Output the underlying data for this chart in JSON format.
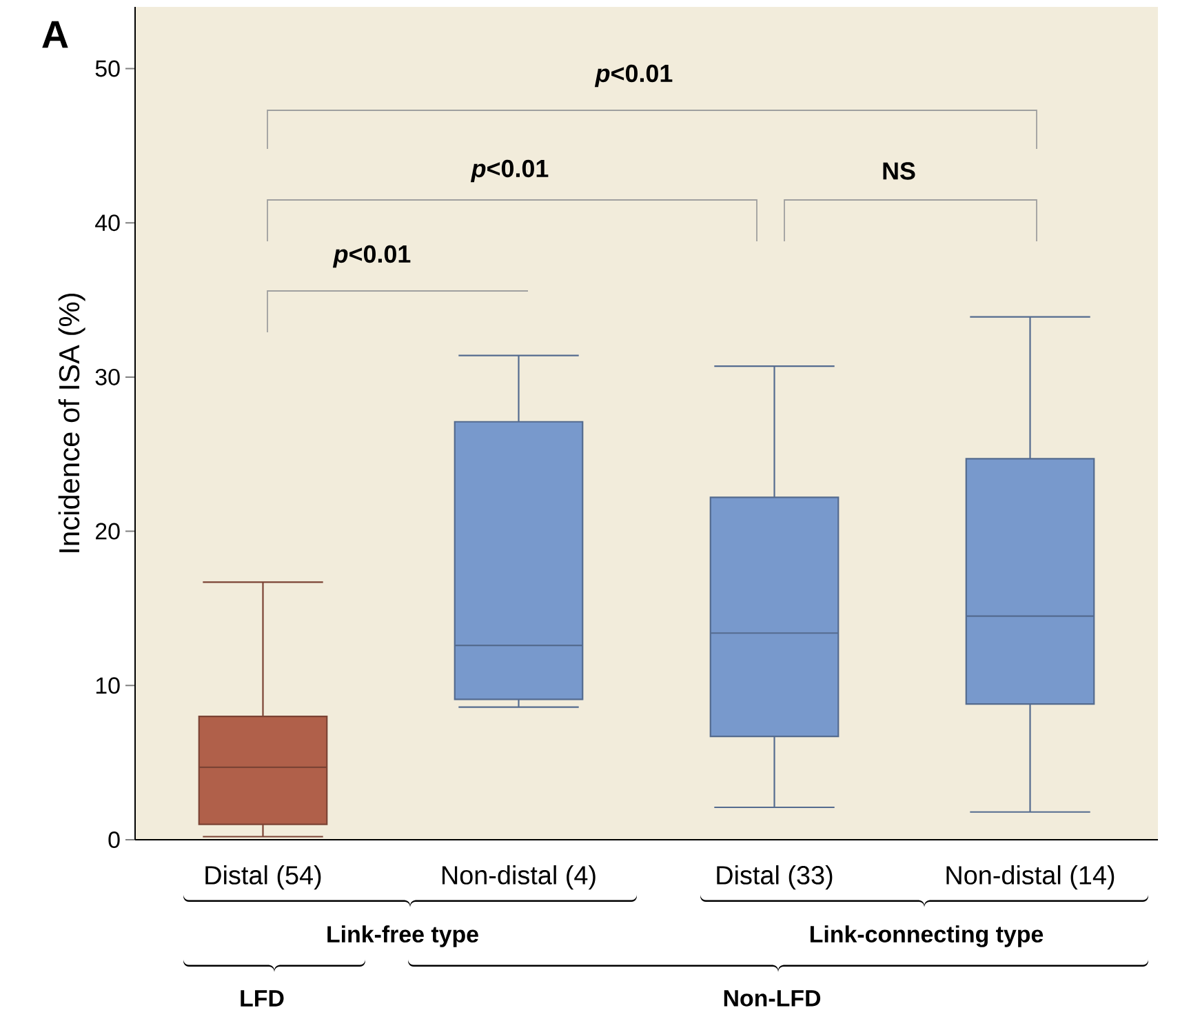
{
  "chart_data": {
    "type": "box",
    "ylabel": "Incidence of ISA (%)",
    "categories": [
      "Distal (54)",
      "Non-distal (4)",
      "Distal (33)",
      "Non-distal (14)"
    ],
    "boxes": [
      {
        "low": 0.2,
        "q1": 1.0,
        "median": 4.7,
        "q3": 8.0,
        "high": 16.7
      },
      {
        "low": 8.6,
        "q1": 9.1,
        "median": 12.6,
        "q3": 27.1,
        "high": 31.4
      },
      {
        "low": 2.1,
        "q1": 6.7,
        "median": 13.4,
        "q3": 22.2,
        "high": 30.7
      },
      {
        "low": 1.8,
        "q1": 8.8,
        "median": 14.5,
        "q3": 24.7,
        "high": 33.9
      }
    ],
    "colors": [
      "#b0604a",
      "#7899cc",
      "#7899cc",
      "#7899cc"
    ],
    "ylim": [
      0,
      54
    ],
    "yticks": [
      0,
      10,
      20,
      30,
      40,
      50
    ],
    "annotations": [
      "A",
      "*p*<0.01",
      "*p*<0.01",
      "NS",
      "*p*<0.01",
      "Link-free type",
      "Link-connecting type",
      "LFD",
      "Non-LFD"
    ]
  }
}
